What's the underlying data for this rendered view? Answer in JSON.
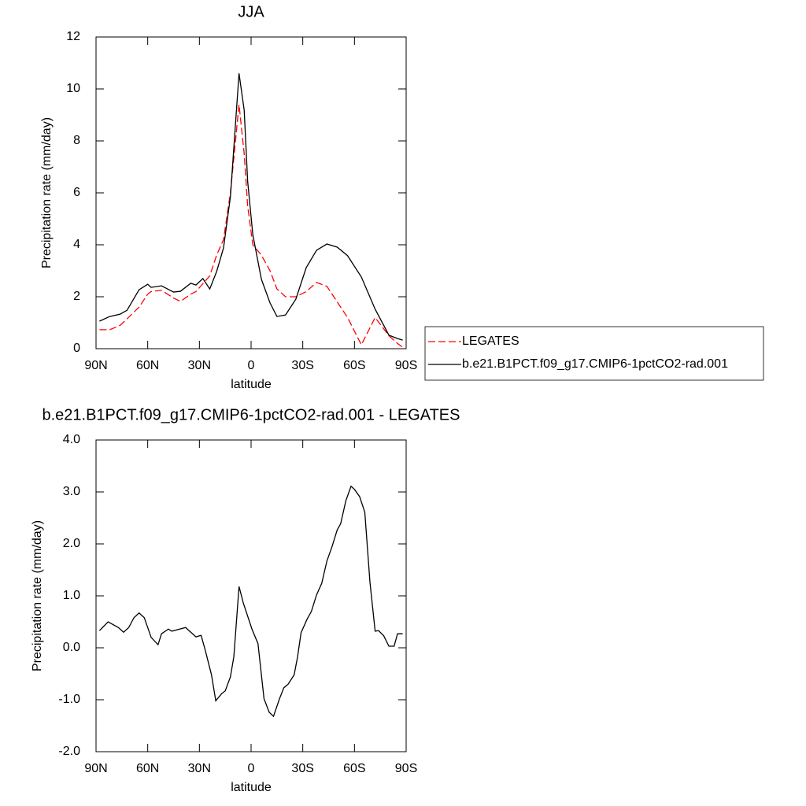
{
  "chart_data": [
    {
      "type": "line",
      "title": "JJA",
      "x_label": "latitude",
      "y_label": "Precipitation rate (mm/day)",
      "x": [
        88,
        82,
        76,
        72,
        65,
        60,
        58,
        52,
        45,
        41,
        35,
        32,
        28,
        24,
        20,
        16,
        12,
        7,
        4,
        2,
        -1,
        -6,
        -11,
        -15,
        -20,
        -26,
        -32,
        -38,
        -44,
        -50,
        -56,
        -64,
        -72,
        -80,
        -85,
        -88
      ],
      "series": [
        {
          "name": "LEGATES",
          "color": "#ff0000",
          "dashed": true,
          "values": [
            0.73,
            0.73,
            0.9,
            1.15,
            1.6,
            2.1,
            2.2,
            2.25,
            1.95,
            1.82,
            2.1,
            2.2,
            2.5,
            2.8,
            3.6,
            4.2,
            6.0,
            9.4,
            7.5,
            5.5,
            4.0,
            3.6,
            3.0,
            2.3,
            2.0,
            2.0,
            2.2,
            2.55,
            2.4,
            1.8,
            1.2,
            0.15,
            1.2,
            0.5,
            0.2,
            0.05
          ]
        },
        {
          "name": "b.e21.B1PCT.f09_g17.CMIP6-1pctCO2-rad.001",
          "color": "#000000",
          "dashed": false,
          "values": [
            1.06,
            1.24,
            1.33,
            1.48,
            2.27,
            2.48,
            2.36,
            2.42,
            2.18,
            2.21,
            2.52,
            2.45,
            2.7,
            2.3,
            2.97,
            3.88,
            5.85,
            10.6,
            9.18,
            6.45,
            4.39,
            2.67,
            1.76,
            1.24,
            1.3,
            1.91,
            3.12,
            3.79,
            4.03,
            3.91,
            3.58,
            2.76,
            1.52,
            0.52,
            0.39,
            0.33
          ]
        }
      ],
      "xlim": [
        90,
        -90
      ],
      "xticks": [
        {
          "value": 90,
          "label": "90N"
        },
        {
          "value": 60,
          "label": "60N"
        },
        {
          "value": 30,
          "label": "30N"
        },
        0,
        {
          "value": -30,
          "label": "30S"
        },
        {
          "value": -60,
          "label": "60S"
        },
        {
          "value": -90,
          "label": "90S"
        }
      ],
      "ylim": [
        0,
        12
      ],
      "yticks": [
        0,
        2,
        4,
        6,
        8,
        10,
        12
      ],
      "legend": "right"
    },
    {
      "type": "line",
      "title": "b.e21.B1PCT.f09_g17.CMIP6-1pctCO2-rad.001 - LEGATES",
      "x_label": "latitude",
      "y_label": "Precipitation rate (mm/day)",
      "x": [
        88,
        83,
        77,
        74,
        71,
        68,
        65,
        62,
        58,
        54,
        52,
        48,
        46,
        38,
        36,
        32,
        29,
        26.5,
        23,
        20.5,
        17,
        15,
        12,
        10,
        7,
        4.5,
        -0.5,
        -4,
        -7.5,
        -10.5,
        -13,
        -16.5,
        -19,
        -21.5,
        -25,
        -27,
        -29,
        -32.5,
        -35,
        -38,
        -41,
        -44,
        -47,
        -50,
        -52,
        -55,
        -58,
        -60,
        -63,
        -66,
        -69,
        -72,
        -74,
        -77,
        -80,
        -83,
        -85,
        -88
      ],
      "series": [
        {
          "color": "#000000",
          "dashed": false,
          "values": [
            0.33,
            0.5,
            0.39,
            0.3,
            0.39,
            0.58,
            0.67,
            0.58,
            0.2,
            0.06,
            0.27,
            0.36,
            0.32,
            0.39,
            0.33,
            0.21,
            0.24,
            -0.06,
            -0.52,
            -1.02,
            -0.88,
            -0.83,
            -0.56,
            -0.17,
            1.18,
            0.86,
            0.36,
            0.08,
            -0.98,
            -1.24,
            -1.32,
            -0.98,
            -0.77,
            -0.7,
            -0.52,
            -0.17,
            0.29,
            0.55,
            0.7,
            1.02,
            1.24,
            1.67,
            1.95,
            2.27,
            2.39,
            2.83,
            3.11,
            3.05,
            2.91,
            2.61,
            1.26,
            0.32,
            0.33,
            0.23,
            0.03,
            0.03,
            0.27,
            0.27
          ]
        }
      ],
      "xlim": [
        90,
        -90
      ],
      "xticks": [
        {
          "value": 90,
          "label": "90N"
        },
        {
          "value": 60,
          "label": "60N"
        },
        {
          "value": 30,
          "label": "30N"
        },
        0,
        {
          "value": -30,
          "label": "30S"
        },
        {
          "value": -60,
          "label": "60S"
        },
        {
          "value": -90,
          "label": "90S"
        }
      ],
      "ylim": [
        -2,
        4
      ],
      "yticks": [
        {
          "value": -2,
          "label": "-2.0"
        },
        {
          "value": -1,
          "label": "-1.0"
        },
        {
          "value": 0,
          "label": "0.0"
        },
        {
          "value": 1,
          "label": "1.0"
        },
        {
          "value": 2,
          "label": "2.0"
        },
        {
          "value": 3,
          "label": "3.0"
        },
        {
          "value": 4,
          "label": "4.0"
        }
      ]
    }
  ]
}
